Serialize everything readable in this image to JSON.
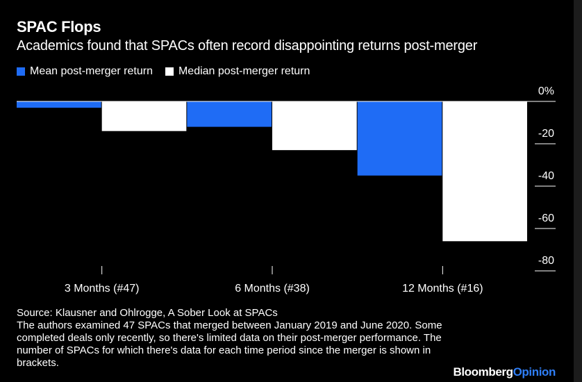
{
  "header": {
    "title": "SPAC Flops",
    "subtitle": "Academics found that SPACs often record disappointing returns post-merger"
  },
  "legend": {
    "mean_label": "Mean post-merger return",
    "median_label": "Median post-merger return"
  },
  "colors": {
    "mean": "#1f6cf5",
    "median": "#ffffff",
    "axis": "#ffffff",
    "background": "#000000"
  },
  "chart_data": {
    "type": "bar",
    "title": "SPAC Flops",
    "subtitle": "Academics found that SPACs often record disappointing returns post-merger",
    "categories": [
      "3 Months (#47)",
      "6 Months (#38)",
      "12 Months (#16)"
    ],
    "series": [
      {
        "name": "Mean post-merger return",
        "values": [
          -3,
          -12,
          -35
        ]
      },
      {
        "name": "Median post-merger return",
        "values": [
          -14,
          -23,
          -66
        ]
      }
    ],
    "ylim": [
      -80,
      0
    ],
    "yticks": [
      0,
      -20,
      -40,
      -60,
      -80
    ],
    "ytick_labels": [
      "0%",
      "-20",
      "-40",
      "-60",
      "-80"
    ],
    "y_axis_side": "right",
    "grid": false,
    "legend_position": "top-left"
  },
  "footer": {
    "source": "Source: Klausner and Ohlrogge, A Sober Look at SPACs",
    "note": "The authors examined 47 SPACs that merged between January 2019 and June 2020. Some completed deals only recently, so there's limited data on their post-merger performance. The number of SPACs for which there's data for each time period since the merger is shown in brackets.",
    "brand_part1": "Bloomberg",
    "brand_part2": "Opinion"
  }
}
